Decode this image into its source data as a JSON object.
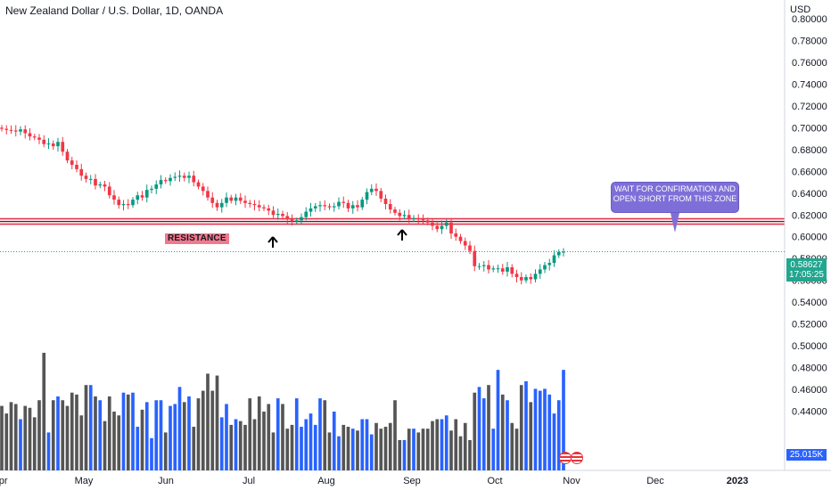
{
  "header": {
    "title": "New Zealand Dollar / U.S. Dollar, 1D, OANDA",
    "currency": "USD"
  },
  "annotations": {
    "callout_text": "WAIT FOR CONFIRMATION AND OPEN SHORT FROM THIS ZONE",
    "resistance_label": "RESISTANCE"
  },
  "price_tag": {
    "price": "0.58627",
    "countdown": "17:05:25"
  },
  "volume_tag": "25.015K",
  "colors": {
    "up": "#089981",
    "down": "#f23645",
    "vol_up": "#2962ff",
    "vol_down": "#555555",
    "resistance_line": "#e0364f",
    "callout": "#7e6fd8",
    "price_tag": "#22a68f"
  },
  "chart_data": {
    "type": "candlestick",
    "ylim": [
      0.42,
      0.8
    ],
    "y_ticks": [
      "0.80000",
      "0.78000",
      "0.76000",
      "0.74000",
      "0.72000",
      "0.70000",
      "0.68000",
      "0.66000",
      "0.64000",
      "0.62000",
      "0.60000",
      "0.58000",
      "0.56000",
      "0.54000",
      "0.52000",
      "0.50000",
      "0.48000",
      "0.46000",
      "0.44000"
    ],
    "x_tick_labels": [
      "Apr",
      "May",
      "Jun",
      "Jul",
      "Aug",
      "Sep",
      "Oct",
      "Nov",
      "Dec",
      "2023"
    ],
    "resistance_zone": [
      0.6115,
      0.6165
    ],
    "last_price": 0.58627,
    "close": [
      0.699,
      0.698,
      0.6975,
      0.6965,
      0.6985,
      0.695,
      0.692,
      0.691,
      0.689,
      0.685,
      0.6855,
      0.683,
      0.687,
      0.678,
      0.67,
      0.666,
      0.662,
      0.656,
      0.653,
      0.653,
      0.647,
      0.648,
      0.646,
      0.638,
      0.634,
      0.629,
      0.63,
      0.629,
      0.634,
      0.638,
      0.636,
      0.643,
      0.644,
      0.648,
      0.652,
      0.651,
      0.654,
      0.655,
      0.656,
      0.654,
      0.656,
      0.65,
      0.646,
      0.642,
      0.636,
      0.631,
      0.627,
      0.631,
      0.636,
      0.633,
      0.636,
      0.633,
      0.631,
      0.63,
      0.629,
      0.627,
      0.626,
      0.624,
      0.62,
      0.621,
      0.619,
      0.616,
      0.614,
      0.615,
      0.618,
      0.623,
      0.626,
      0.628,
      0.629,
      0.628,
      0.627,
      0.628,
      0.632,
      0.631,
      0.626,
      0.629,
      0.627,
      0.634,
      0.641,
      0.644,
      0.642,
      0.635,
      0.63,
      0.625,
      0.622,
      0.619,
      0.62,
      0.617,
      0.617,
      0.616,
      0.615,
      0.613,
      0.61,
      0.607,
      0.61,
      0.613,
      0.603,
      0.6,
      0.596,
      0.592,
      0.587,
      0.573,
      0.573,
      0.574,
      0.57,
      0.571,
      0.571,
      0.568,
      0.572,
      0.566,
      0.563,
      0.56,
      0.563,
      0.561,
      0.566,
      0.57,
      0.574,
      0.576,
      0.583,
      0.586,
      0.58627
    ],
    "volume": [
      34,
      30,
      36,
      35,
      27,
      34,
      33,
      28,
      37,
      62,
      20,
      37,
      39,
      37,
      34,
      41,
      40,
      29,
      45,
      45,
      39,
      37,
      26,
      39,
      31,
      29,
      41,
      40,
      41,
      23,
      32,
      36,
      17,
      37,
      37,
      20,
      34,
      35,
      44,
      36,
      39,
      23,
      38,
      42,
      51,
      42,
      50,
      28,
      35,
      24,
      27,
      26,
      24,
      38,
      27,
      39,
      31,
      35,
      20,
      38,
      35,
      22,
      24,
      38,
      23,
      27,
      30,
      24,
      38,
      37,
      20,
      31,
      18,
      24,
      23,
      22,
      21,
      27,
      27,
      19,
      25,
      22,
      23,
      25,
      37,
      16,
      16,
      22,
      22,
      20,
      22,
      22,
      26,
      27,
      27,
      29,
      21,
      27,
      18,
      25,
      16,
      41,
      44,
      38,
      45,
      22,
      53,
      40,
      37,
      25,
      22,
      45,
      47,
      36,
      43,
      42,
      43,
      40,
      30,
      37,
      53
    ]
  }
}
